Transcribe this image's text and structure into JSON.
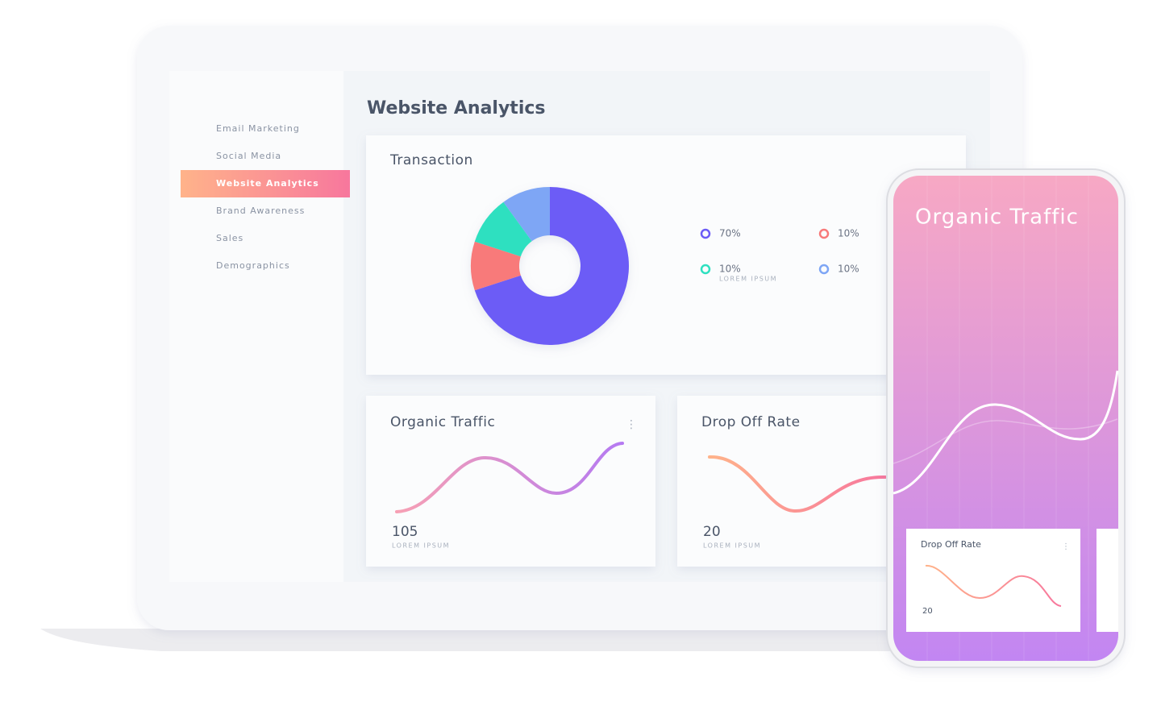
{
  "sidebar": {
    "items": [
      "Email Marketing",
      "Social Media",
      "Website Analytics",
      "Brand Awareness",
      "Sales",
      "Demographics"
    ],
    "active": 2
  },
  "header": {
    "title": "Website Analytics"
  },
  "transaction": {
    "title": "Transaction",
    "segments": [
      {
        "value": 70,
        "label": "70%",
        "color": "#6c5cf6"
      },
      {
        "value": 10,
        "label": "10%",
        "color": "#f87a7a"
      },
      {
        "value": 10,
        "label": "10%",
        "color": "#2ee0c0",
        "note": "LOREM IPSUM"
      },
      {
        "value": 10,
        "label": "10%",
        "color": "#7ea6f5"
      }
    ]
  },
  "cards": [
    {
      "title": "Organic Traffic",
      "value": 105,
      "caption": "LOREM IPSUM"
    },
    {
      "title": "Drop Off Rate",
      "value": 20,
      "caption": "LOREM IPSUM"
    }
  ],
  "phone": {
    "title": "Organic Traffic",
    "card": {
      "title": "Drop Off Rate",
      "value": 20
    }
  }
}
